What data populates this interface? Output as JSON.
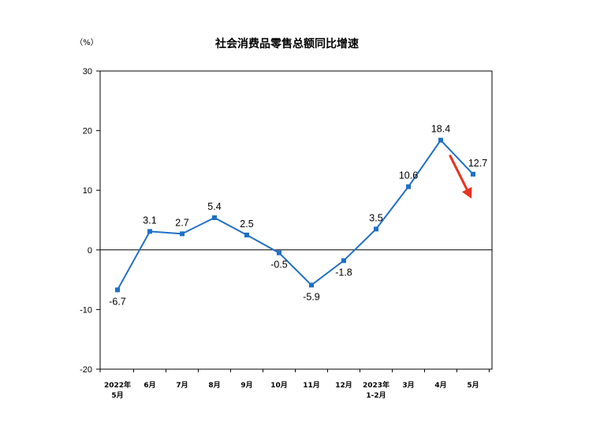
{
  "chart_data": {
    "type": "line",
    "title": "社会消费品零售总额同比增速",
    "unit_label": "（%）",
    "xlabel": "",
    "ylabel": "",
    "ylim": [
      -20,
      30
    ],
    "yticks": [
      30,
      20,
      10,
      0,
      -10,
      -20
    ],
    "grid": false,
    "categories": [
      [
        "2022年",
        "5月"
      ],
      [
        "6月"
      ],
      [
        "7月"
      ],
      [
        "8月"
      ],
      [
        "9月"
      ],
      [
        "10月"
      ],
      [
        "11月"
      ],
      [
        "12月"
      ],
      [
        "2023年",
        "1-2月"
      ],
      [
        "3月"
      ],
      [
        "4月"
      ],
      [
        "5月"
      ]
    ],
    "values": [
      -6.7,
      3.1,
      2.7,
      5.4,
      2.5,
      -0.5,
      -5.9,
      -1.8,
      3.5,
      10.6,
      18.4,
      12.7
    ],
    "data_labels": [
      "-6.7",
      "3.1",
      "2.7",
      "5.4",
      "2.5",
      "-0.5",
      "-5.9",
      "-1.8",
      "3.5",
      "10.6",
      "18.4",
      "12.7"
    ],
    "annotation": {
      "type": "arrow",
      "color": "#e8321e",
      "direction": "down-right",
      "from_index": 10,
      "to_index": 11
    },
    "colors": {
      "line": "#1f6fc5",
      "marker": "#1f6fc5",
      "axis": "#000000",
      "arrow": "#e8321e"
    }
  }
}
